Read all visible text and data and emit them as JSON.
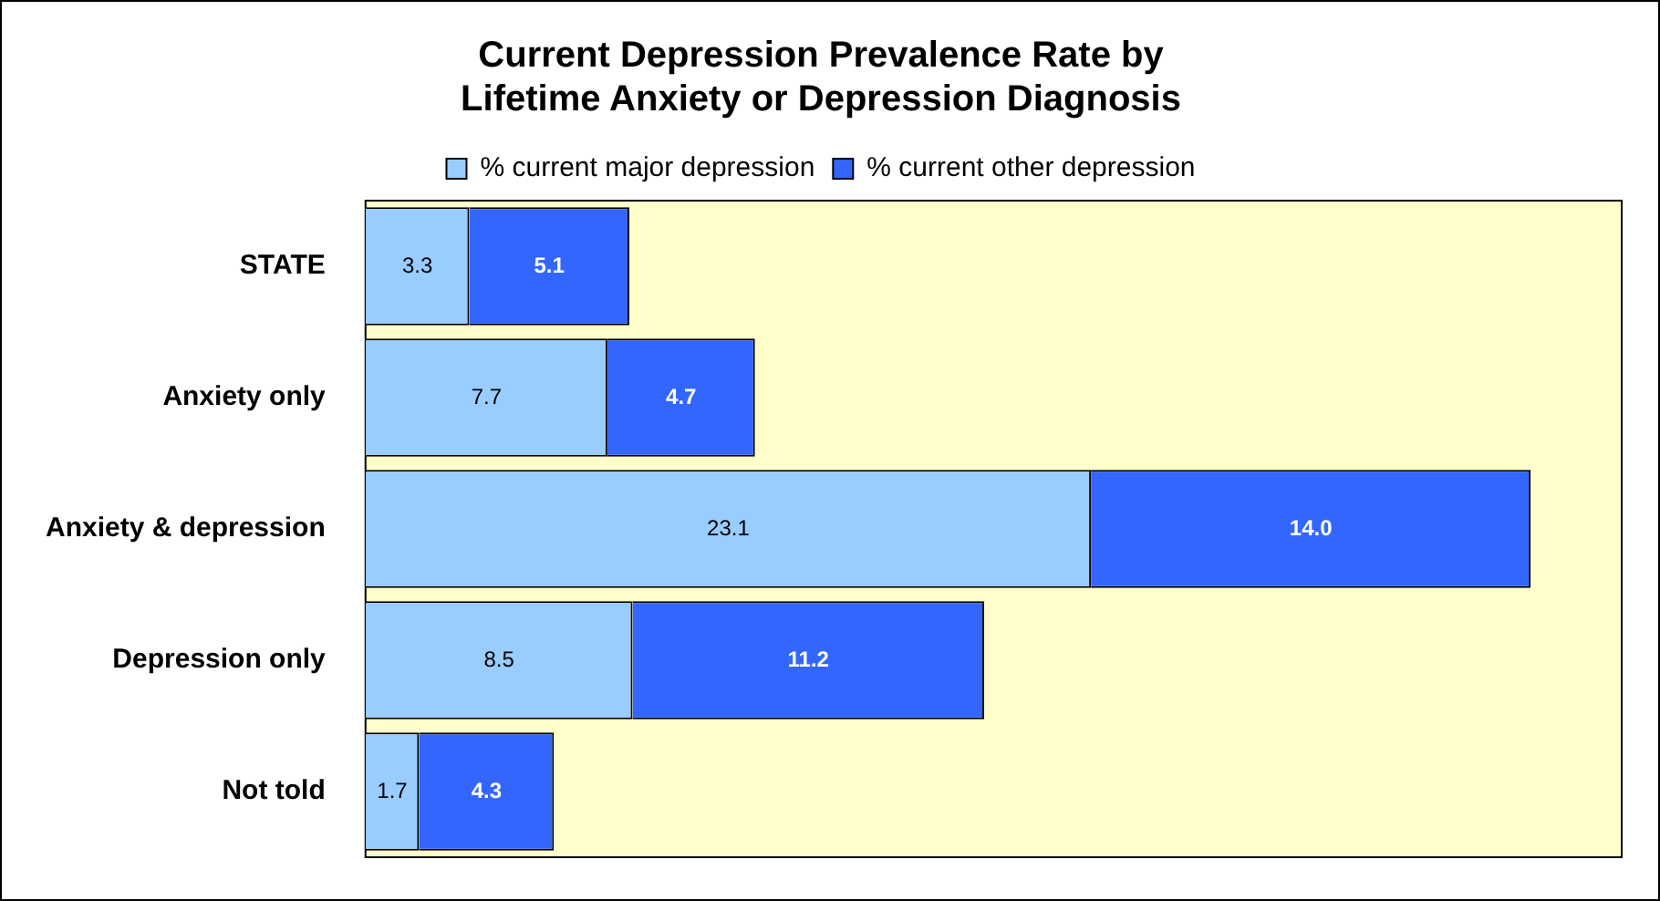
{
  "chart_data": {
    "type": "bar",
    "orientation": "horizontal",
    "stacked": true,
    "title": "Current Depression Prevalence Rate by\nLifetime Anxiety or Depression Diagnosis",
    "categories": [
      "STATE",
      "Anxiety only",
      "Anxiety & depression",
      "Depression only",
      "Not told"
    ],
    "series": [
      {
        "name": "% current major depression",
        "color": "#99ccff",
        "values": [
          3.3,
          7.7,
          23.1,
          8.5,
          1.7
        ],
        "value_labels": [
          "3.3",
          "7.7",
          "23.1",
          "8.5",
          "1.7"
        ]
      },
      {
        "name": "% current other depression",
        "color": "#3366ff",
        "values": [
          5.1,
          4.7,
          14.0,
          11.2,
          4.3
        ],
        "value_labels": [
          "5.1",
          "4.7",
          "14.0",
          "11.2",
          "4.3"
        ]
      }
    ],
    "legend": "top"
  }
}
